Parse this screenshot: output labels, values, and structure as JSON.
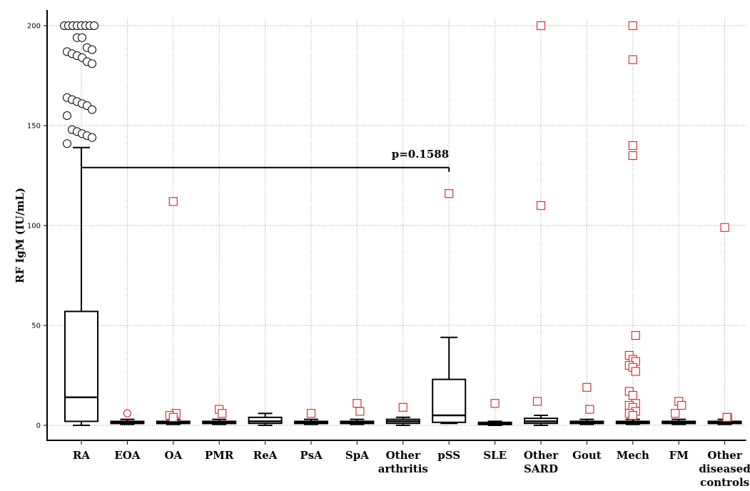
{
  "chart_data": {
    "type": "box",
    "ylabel": "RF IgM (IU/mL)",
    "ylim": [
      0,
      205
    ],
    "yticks": [
      0,
      50,
      100,
      150,
      200
    ],
    "grid": "dotted vertical lines at categories, dotted horizontal lines at y ticks",
    "categories": [
      {
        "name": [
          "RA"
        ],
        "box": {
          "min": 0,
          "q1": 2,
          "median": 14,
          "q3": 57,
          "max": 139
        },
        "outliers": [
          200,
          200,
          200,
          200,
          200,
          200,
          200,
          200,
          194,
          194,
          189,
          188,
          187,
          186,
          185,
          184,
          182,
          181,
          164,
          163,
          162,
          161,
          160,
          158,
          155,
          148,
          147,
          146,
          145,
          144,
          141
        ],
        "outlier_marker": "circle"
      },
      {
        "name": [
          "EOA"
        ],
        "box": {
          "min": 0.5,
          "q1": 1,
          "median": 1.5,
          "q3": 2,
          "max": 3
        },
        "outliers": [
          6
        ],
        "outlier_marker": "circle-red"
      },
      {
        "name": [
          "OA"
        ],
        "box": {
          "min": 0.5,
          "q1": 1,
          "median": 1.5,
          "q3": 2,
          "max": 3
        },
        "outliers": [
          112,
          6,
          5,
          4
        ],
        "outlier_marker": "square"
      },
      {
        "name": [
          "PMR"
        ],
        "box": {
          "min": 0.5,
          "q1": 1,
          "median": 1.5,
          "q3": 2,
          "max": 3
        },
        "outliers": [
          8,
          6
        ],
        "outlier_marker": "square"
      },
      {
        "name": [
          "ReA"
        ],
        "box": {
          "min": 0,
          "q1": 1,
          "median": 2,
          "q3": 4,
          "max": 6
        },
        "outliers": [],
        "outlier_marker": "none"
      },
      {
        "name": [
          "PsA"
        ],
        "box": {
          "min": 0.5,
          "q1": 1,
          "median": 1.5,
          "q3": 2,
          "max": 3
        },
        "outliers": [
          6
        ],
        "outlier_marker": "square"
      },
      {
        "name": [
          "SpA"
        ],
        "box": {
          "min": 0.5,
          "q1": 1,
          "median": 1.5,
          "q3": 2,
          "max": 3
        },
        "outliers": [
          11,
          7
        ],
        "outlier_marker": "square"
      },
      {
        "name": [
          "Other",
          "arthritis"
        ],
        "box": {
          "min": 0,
          "q1": 1,
          "median": 2,
          "q3": 3,
          "max": 4
        },
        "outliers": [
          9
        ],
        "outlier_marker": "square"
      },
      {
        "name": [
          "pSS"
        ],
        "box": {
          "min": 1,
          "q1": 1.5,
          "median": 5,
          "q3": 23,
          "max": 44
        },
        "outliers": [
          116
        ],
        "outlier_marker": "square"
      },
      {
        "name": [
          "SLE"
        ],
        "box": {
          "min": 0,
          "q1": 0.5,
          "median": 1,
          "q3": 1.5,
          "max": 2
        },
        "outliers": [
          11
        ],
        "outlier_marker": "square"
      },
      {
        "name": [
          "Other",
          "SARD"
        ],
        "box": {
          "min": 0,
          "q1": 1,
          "median": 2,
          "q3": 3.5,
          "max": 5
        },
        "outliers": [
          200,
          110,
          12
        ],
        "outlier_marker": "square"
      },
      {
        "name": [
          "Gout"
        ],
        "box": {
          "min": 0.5,
          "q1": 1,
          "median": 1.5,
          "q3": 2,
          "max": 3
        },
        "outliers": [
          19,
          8
        ],
        "outlier_marker": "square"
      },
      {
        "name": [
          "Mech"
        ],
        "box": {
          "min": 0.5,
          "q1": 1,
          "median": 1.5,
          "q3": 2,
          "max": 3
        },
        "outliers": [
          200,
          183,
          140,
          135,
          45,
          35,
          33,
          32,
          30,
          29,
          27,
          17,
          15,
          11,
          10,
          9,
          7,
          6,
          5
        ],
        "outlier_marker": "square"
      },
      {
        "name": [
          "FM"
        ],
        "box": {
          "min": 0.5,
          "q1": 1,
          "median": 1.5,
          "q3": 2,
          "max": 3
        },
        "outliers": [
          12,
          10,
          6
        ],
        "outlier_marker": "square"
      },
      {
        "name": [
          "Other",
          "diseased",
          "controls"
        ],
        "box": {
          "min": 0.5,
          "q1": 1,
          "median": 1.5,
          "q3": 2,
          "max": 3
        },
        "outliers": [
          99,
          4,
          4
        ],
        "outlier_marker": "square"
      }
    ],
    "annotation": {
      "text": "p=0.1588",
      "from": "RA",
      "to": "pSS",
      "y": 129
    },
    "colors": {
      "outlier": "#e03030",
      "axis": "#000000",
      "grid": "#999999"
    }
  }
}
